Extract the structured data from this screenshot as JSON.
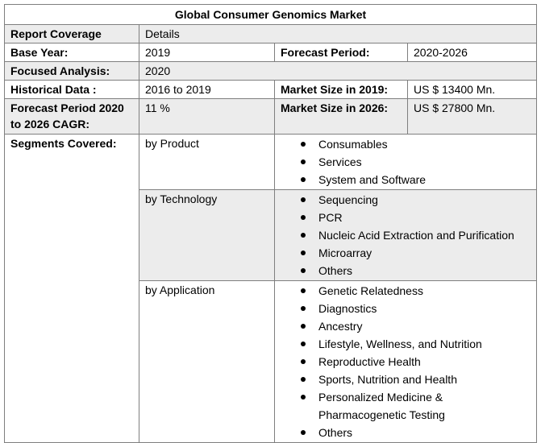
{
  "title": "Global Consumer Genomics Market",
  "rows": {
    "coverage": {
      "label": "Report Coverage",
      "value": "Details"
    },
    "base_year": {
      "label": "Base Year:",
      "value": "2019",
      "label2": "Forecast Period:",
      "value2": "2020-2026"
    },
    "focused": {
      "label": "Focused Analysis:",
      "value": "2020"
    },
    "historical": {
      "label": "Historical Data :",
      "value": "2016 to 2019",
      "label2": "Market Size in 2019:",
      "value2": "US $ 13400 Mn."
    },
    "cagr": {
      "label_line1": "Forecast Period 2020",
      "label_line2": "to 2026 CAGR:",
      "value": "11 %",
      "label2": "Market Size in 2026:",
      "value2": "US $ 27800 Mn."
    }
  },
  "segments": {
    "label": "Segments Covered:",
    "groups": [
      {
        "name": "by Product",
        "items": [
          "Consumables",
          "Services",
          "System and Software"
        ]
      },
      {
        "name": "by Technology",
        "items": [
          "Sequencing",
          "PCR",
          "Nucleic Acid Extraction and Purification",
          "Microarray",
          "Others"
        ]
      },
      {
        "name": "by Application",
        "items": [
          "Genetic Relatedness",
          "Diagnostics",
          "Ancestry",
          "Lifestyle, Wellness, and Nutrition",
          "Reproductive Health",
          "Sports, Nutrition and Health",
          "Personalized Medicine &",
          "Pharmacogenetic Testing",
          "Others"
        ]
      }
    ]
  }
}
